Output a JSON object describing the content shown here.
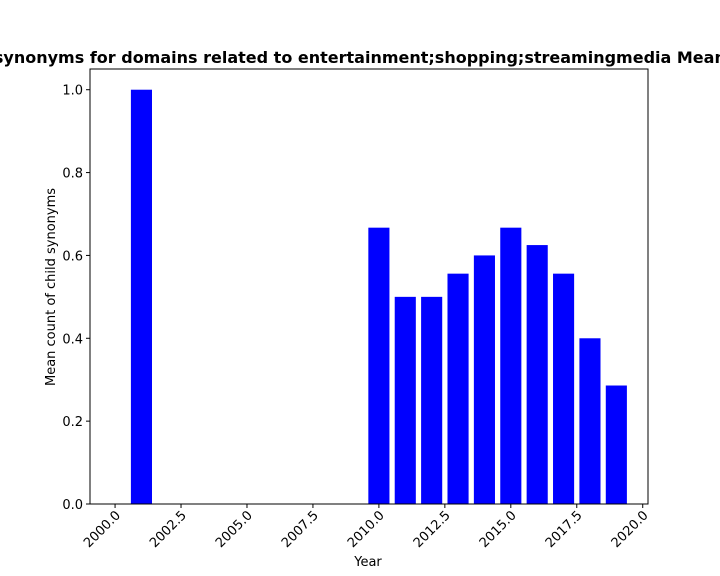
{
  "chart_data": {
    "type": "bar",
    "title": "Average count of child synonyms for domains related to entertainment;shopping;streamingmedia Mean count of child synonyms",
    "xlabel": "Year",
    "ylabel": "Mean count of child synonyms",
    "xlim": [
      1999.05,
      2020.2
    ],
    "ylim": [
      0,
      1.05
    ],
    "xticks": [
      "2000.0",
      "2002.5",
      "2005.0",
      "2007.5",
      "2010.0",
      "2012.5",
      "2015.0",
      "2017.5",
      "2020.0"
    ],
    "yticks": [
      "0.0",
      "0.2",
      "0.4",
      "0.6",
      "0.8",
      "1.0"
    ],
    "bar_color": "#0000ff",
    "x": [
      2001,
      2010,
      2011,
      2012,
      2013,
      2014,
      2015,
      2016,
      2017,
      2018,
      2019
    ],
    "values": [
      1.0,
      0.667,
      0.5,
      0.5,
      0.556,
      0.6,
      0.667,
      0.625,
      0.556,
      0.4,
      0.286
    ],
    "grid": false
  }
}
